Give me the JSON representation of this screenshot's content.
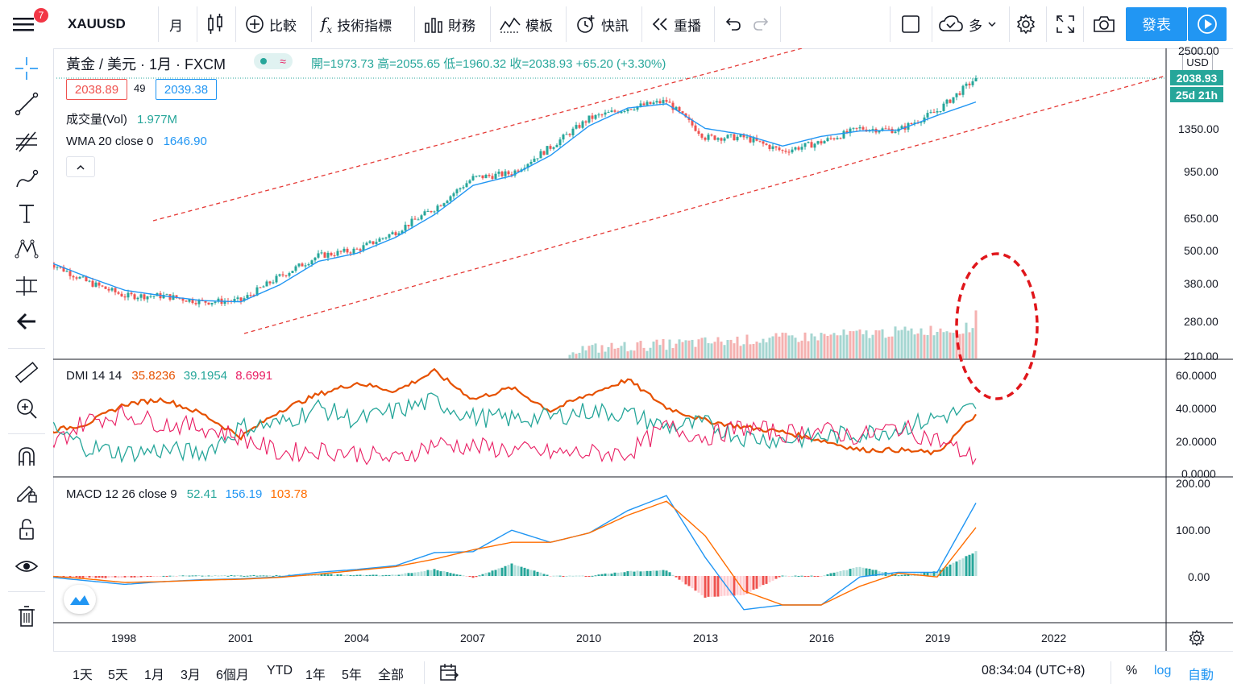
{
  "topbar": {
    "notif_count": "7",
    "symbol": "XAUUSD",
    "interval": "月",
    "compare": "比較",
    "indicators": "技術指標",
    "financials": "財務",
    "templates": "模板",
    "alert": "快訊",
    "replay": "重播",
    "layout_name": "多",
    "publish": "發表"
  },
  "legend": {
    "title": "黃金 / 美元 · 1月 · FXCM",
    "ohlc": "開=1973.73 高=2055.65 低=1960.32 收=2038.93 +65.20 (+3.30%)",
    "bid": "2038.89",
    "spread": "49",
    "ask": "2039.38",
    "vol_label": "成交量(Vol)",
    "vol_value": "1.977M",
    "wma_label": "WMA 20 close 0",
    "wma_value": "1646.90"
  },
  "price_axis": {
    "currency": "USD",
    "labels": [
      "2500.00",
      "1350.00",
      "950.00",
      "650.00",
      "500.00",
      "380.00",
      "280.00",
      "210.00"
    ],
    "last_price": "2038.93",
    "countdown": "25d 21h"
  },
  "dmi": {
    "label": "DMI 14 14",
    "adx": "35.8236",
    "plus_di": "39.1954",
    "minus_di": "8.6991",
    "axis": [
      "60.0000",
      "40.0000",
      "20.0000",
      "0.0000"
    ]
  },
  "macd": {
    "label": "MACD 12 26 close 9",
    "hist": "52.41",
    "macd": "156.19",
    "signal": "103.78",
    "axis": [
      "200.00",
      "100.00",
      "0.00"
    ]
  },
  "time_axis": [
    "1998",
    "2001",
    "2004",
    "2007",
    "2010",
    "2013",
    "2016",
    "2019",
    "2022"
  ],
  "bottombar": {
    "ranges": [
      "1天",
      "5天",
      "1月",
      "3月",
      "6個月",
      "YTD",
      "1年",
      "5年",
      "全部"
    ],
    "clock": "08:34:04 (UTC+8)",
    "percent": "%",
    "log": "log",
    "auto": "自動"
  },
  "colors": {
    "up": "#26a69a",
    "down": "#ef5350",
    "accent": "#2196f3",
    "adx": "#e65100",
    "plus_di": "#26a69a",
    "minus_di": "#e91e63",
    "macd_line": "#2196f3",
    "signal_line": "#ff6d00",
    "wma": "#2196f3",
    "annotation": "#e0161b"
  },
  "chart_data": [
    {
      "type": "candlestick",
      "title": "黃金 / 美元 · 1月 · FXCM",
      "scale": "log",
      "x": [
        "1996",
        "1997",
        "1998",
        "1999",
        "2000",
        "2001",
        "2002",
        "2003",
        "2004",
        "2005",
        "2006",
        "2007",
        "2008",
        "2009",
        "2010",
        "2011",
        "2012",
        "2013",
        "2014",
        "2015",
        "2016",
        "2017",
        "2018",
        "2019",
        "2020"
      ],
      "close": [
        395,
        330,
        290,
        290,
        275,
        278,
        345,
        415,
        438,
        515,
        635,
        835,
        870,
        1100,
        1420,
        1560,
        1660,
        1200,
        1200,
        1060,
        1150,
        1300,
        1280,
        1520,
        2038.93
      ],
      "series": [
        {
          "name": "WMA 20 close 0",
          "values": [
            395,
            345,
            305,
            290,
            278,
            275,
            320,
            395,
            425,
            490,
            600,
            780,
            850,
            1020,
            1330,
            1560,
            1620,
            1300,
            1230,
            1110,
            1210,
            1270,
            1280,
            1460,
            1646.9
          ]
        }
      ],
      "ylim": [
        210,
        2500
      ]
    },
    {
      "type": "line",
      "title": "DMI 14 14",
      "x": [
        "1996",
        "1997",
        "1998",
        "1999",
        "2000",
        "2001",
        "2002",
        "2003",
        "2004",
        "2005",
        "2006",
        "2007",
        "2008",
        "2009",
        "2010",
        "2011",
        "2012",
        "2013",
        "2014",
        "2015",
        "2016",
        "2017",
        "2018",
        "2019",
        "2020"
      ],
      "series": [
        {
          "name": "ADX",
          "values": [
            25,
            30,
            42,
            45,
            36,
            22,
            38,
            48,
            55,
            50,
            62,
            45,
            52,
            38,
            48,
            57,
            40,
            32,
            28,
            25,
            20,
            14,
            14,
            12,
            35.82
          ]
        },
        {
          "name": "+DI",
          "values": [
            28,
            16,
            12,
            14,
            12,
            28,
            30,
            40,
            32,
            38,
            44,
            34,
            33,
            34,
            38,
            36,
            28,
            30,
            22,
            20,
            22,
            24,
            27,
            34,
            39.2
          ]
        },
        {
          "name": "-DI",
          "values": [
            15,
            32,
            36,
            30,
            28,
            22,
            12,
            14,
            12,
            8,
            18,
            16,
            14,
            12,
            12,
            12,
            28,
            22,
            28,
            24,
            26,
            22,
            28,
            20,
            8.7
          ]
        }
      ],
      "ylim": [
        0,
        60
      ]
    },
    {
      "type": "line",
      "title": "MACD 12 26 close 9",
      "x": [
        "1996",
        "1997",
        "1998",
        "1999",
        "2000",
        "2001",
        "2002",
        "2003",
        "2004",
        "2005",
        "2006",
        "2007",
        "2008",
        "2009",
        "2010",
        "2011",
        "2012",
        "2013",
        "2014",
        "2015",
        "2016",
        "2017",
        "2018",
        "2019",
        "2020"
      ],
      "series": [
        {
          "name": "MACD",
          "values": [
            -2,
            -10,
            -18,
            -12,
            -8,
            -6,
            -2,
            8,
            14,
            22,
            50,
            52,
            98,
            72,
            92,
            140,
            172,
            40,
            -72,
            -62,
            -62,
            -2,
            8,
            8,
            156.19
          ]
        },
        {
          "name": "Signal",
          "values": [
            0,
            -6,
            -14,
            -12,
            -9,
            -7,
            -3,
            4,
            12,
            20,
            36,
            56,
            72,
            72,
            92,
            130,
            160,
            86,
            -32,
            -62,
            -62,
            -22,
            6,
            -2,
            103.78
          ]
        },
        {
          "name": "Histogram",
          "values": [
            -2,
            -4,
            -4,
            0,
            1,
            1,
            1,
            4,
            2,
            2,
            14,
            -4,
            26,
            0,
            0,
            10,
            12,
            -46,
            -40,
            0,
            0,
            20,
            2,
            10,
            52.41
          ]
        }
      ],
      "ylim": [
        -100,
        200
      ]
    }
  ]
}
